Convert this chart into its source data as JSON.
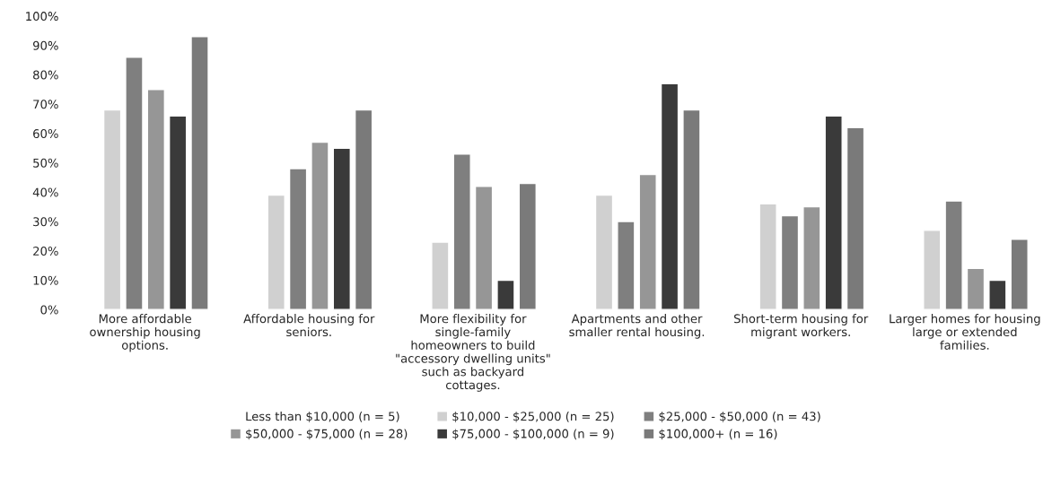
{
  "chart_data": {
    "type": "bar",
    "categories": [
      "More affordable\nownership housing\noptions.",
      "Affordable housing for\nseniors.",
      "More flexibility for\nsingle-family\nhomeowners to build\n\"accessory dwelling units\"\nsuch as backyard\ncottages.",
      "Apartments and other\nsmaller rental housing.",
      "Short-term housing for\nmigrant workers.",
      "Larger homes for housing\nlarge or extended\nfamilies."
    ],
    "series": [
      {
        "name": "Less than $10,000 (n = 5)",
        "values": [
          null,
          null,
          null,
          null,
          null,
          null
        ]
      },
      {
        "name": "$10,000 - $25,000 (n = 25)",
        "color": "#d0d0d0",
        "values": [
          68,
          39,
          23,
          39,
          36,
          27
        ]
      },
      {
        "name": "$25,000 - $50,000 (n = 43)",
        "color": "#7f7f7f",
        "values": [
          86,
          48,
          53,
          30,
          32,
          37
        ]
      },
      {
        "name": "$50,000 - $75,000 (n = 28)",
        "color": "#969696",
        "values": [
          75,
          57,
          42,
          46,
          35,
          14
        ]
      },
      {
        "name": "$75,000 - $100,000 (n = 9)",
        "color": "#3a3a3a",
        "values": [
          66,
          55,
          10,
          77,
          66,
          10
        ]
      },
      {
        "name": "$100,000+ (n = 16)",
        "color": "#7a7a7a",
        "values": [
          93,
          68,
          43,
          68,
          62,
          24
        ]
      }
    ],
    "ylim": [
      0,
      100
    ],
    "yticks": [
      {
        "value": 0,
        "label": "0%"
      },
      {
        "value": 10,
        "label": "10%"
      },
      {
        "value": 20,
        "label": "20%"
      },
      {
        "value": 30,
        "label": "30%"
      },
      {
        "value": 40,
        "label": "40%"
      },
      {
        "value": 50,
        "label": "50%"
      },
      {
        "value": 60,
        "label": "60%"
      },
      {
        "value": 70,
        "label": "70%"
      },
      {
        "value": 80,
        "label": "80%"
      },
      {
        "value": 90,
        "label": "90%"
      },
      {
        "value": 100,
        "label": "100%"
      }
    ],
    "grid": false,
    "legend": "bottom"
  }
}
